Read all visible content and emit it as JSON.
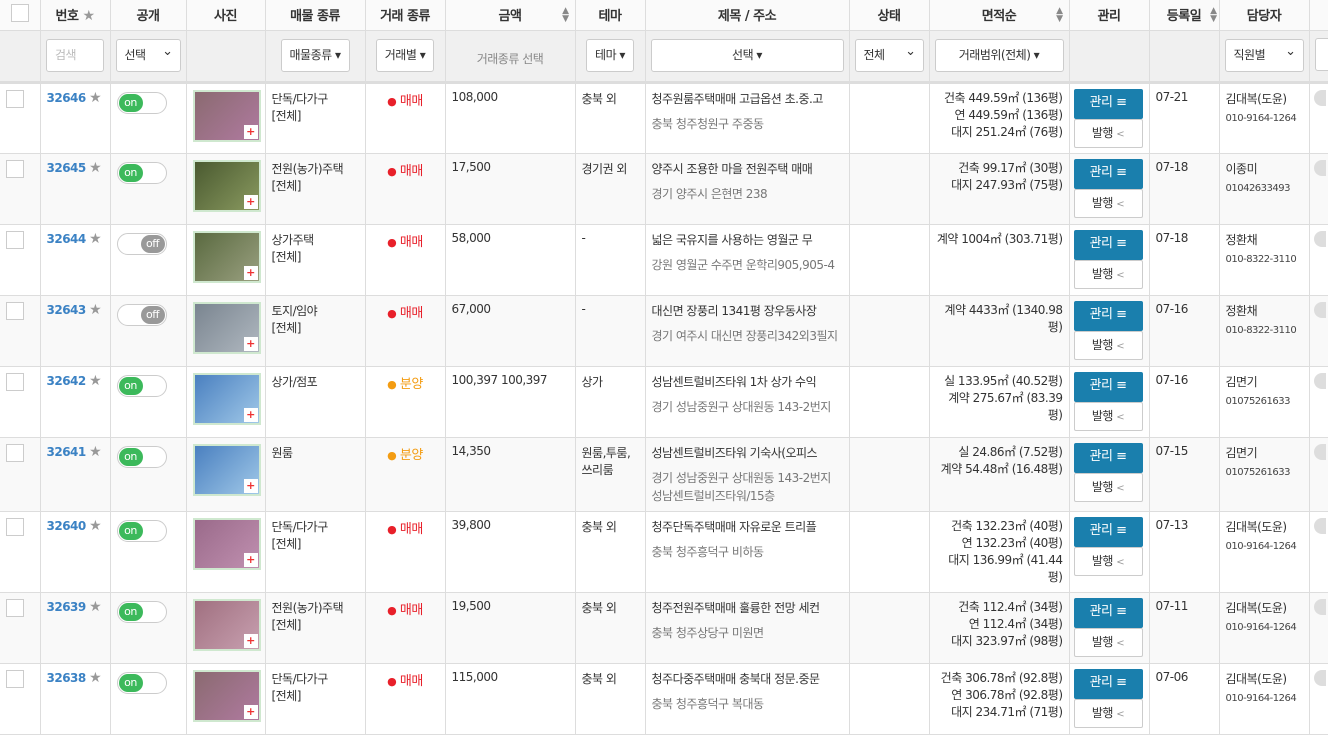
{
  "headers": {
    "no": "번호",
    "public": "공개",
    "photo": "사진",
    "type": "매물 종류",
    "deal": "거래 종류",
    "price": "금액",
    "theme": "테마",
    "title": "제목 / 주소",
    "status": "상태",
    "area": "면적순",
    "manage": "관리",
    "date": "등록일",
    "agent": "담당자"
  },
  "filters": {
    "search_placeholder": "검색",
    "public": "선택",
    "type": "매물종류 ▾",
    "deal": "거래별 ▾",
    "price_note": "거래종류 선택",
    "theme": "테마 ▾",
    "title": "선택 ▾",
    "status": "전체",
    "area": "거래범위(전체) ▾",
    "agent": "직원별"
  },
  "labels": {
    "manage": "관리 ≡",
    "publish": "발행",
    "plus": "+"
  },
  "colors": {
    "accent": "#1a7fad",
    "on": "#3cb95b",
    "sale": "#e8202a",
    "presale": "#f39c12",
    "link": "#3b82c4"
  },
  "rows": [
    {
      "no": "32646",
      "toggle": "on",
      "type": "단독/다가구",
      "sub": "[전체]",
      "deal": "매매",
      "deal_color": "#e8202a",
      "price": "108,000",
      "theme": "충북 외",
      "title": "청주원룸주택매매 고급옵션 초.중.고",
      "addr": "충북 청주청원구 주중동",
      "area": [
        "건축 449.59㎡ (136평)",
        "연 449.59㎡ (136평)",
        "대지 251.24㎡ (76평)"
      ],
      "date": "07-21",
      "agent": "김대복(도윤)",
      "phone": "010-9164-1264"
    },
    {
      "no": "32645",
      "toggle": "on",
      "type": "전원(농가)주택",
      "sub": "[전체]",
      "deal": "매매",
      "deal_color": "#e8202a",
      "price": "17,500",
      "theme": "경기권 외",
      "title": "양주시 조용한 마을 전원주택 매매",
      "addr": "경기 양주시 은현면 238",
      "area": [
        "건축 99.17㎡ (30평)",
        "대지 247.93㎡ (75평)"
      ],
      "date": "07-18",
      "agent": "이종미",
      "phone": "01042633493"
    },
    {
      "no": "32644",
      "toggle": "off",
      "type": "상가주택",
      "sub": "[전체]",
      "deal": "매매",
      "deal_color": "#e8202a",
      "price": "58,000",
      "theme": "-",
      "title": "넓은 국유지를 사용하는 영월군 무",
      "addr": "강원 영월군 수주면 운학리905,905-4",
      "area": [
        "계약 1004㎡ (303.71평)"
      ],
      "date": "07-18",
      "agent": "정환채",
      "phone": "010-8322-3110"
    },
    {
      "no": "32643",
      "toggle": "off",
      "type": "토지/임야",
      "sub": "[전체]",
      "deal": "매매",
      "deal_color": "#e8202a",
      "price": "67,000",
      "theme": "-",
      "title": "대신면 장풍리 1341평 장우동사장",
      "addr": "경기 여주시 대신면 장풍리342외3필지",
      "area": [
        "계약 4433㎡ (1340.98평)"
      ],
      "date": "07-16",
      "agent": "정환채",
      "phone": "010-8322-3110"
    },
    {
      "no": "32642",
      "toggle": "on",
      "type": "상가/점포",
      "sub": "",
      "deal": "분양",
      "deal_color": "#f39c12",
      "price": "100,397  100,397",
      "theme": "상가",
      "title": "성남센트럴비즈타워 1차 상가 수익",
      "addr": "경기 성남중원구 상대원동 143-2번지",
      "area": [
        "실 133.95㎡ (40.52평)",
        "계약 275.67㎡ (83.39평)"
      ],
      "date": "07-16",
      "agent": "김면기",
      "phone": "01075261633"
    },
    {
      "no": "32641",
      "toggle": "on",
      "type": "원룸",
      "sub": "",
      "deal": "분양",
      "deal_color": "#f39c12",
      "price": "14,350",
      "theme": "원룸,투룸,쓰리룸",
      "title": "성남센트럴비즈타워 기숙사(오피스",
      "addr": "경기 성남중원구 상대원동 143-2번지 성남센트럴비즈타워/15층",
      "area": [
        "실 24.86㎡ (7.52평)",
        "계약 54.48㎡ (16.48평)"
      ],
      "date": "07-15",
      "agent": "김면기",
      "phone": "01075261633"
    },
    {
      "no": "32640",
      "toggle": "on",
      "type": "단독/다가구",
      "sub": "[전체]",
      "deal": "매매",
      "deal_color": "#e8202a",
      "price": "39,800",
      "theme": "충북 외",
      "title": "청주단독주택매매 자유로운 트리플",
      "addr": "충북 청주흥덕구 비하동",
      "area": [
        "건축 132.23㎡ (40평)",
        "연 132.23㎡ (40평)",
        "대지 136.99㎡ (41.44평)"
      ],
      "date": "07-13",
      "agent": "김대복(도윤)",
      "phone": "010-9164-1264"
    },
    {
      "no": "32639",
      "toggle": "on",
      "type": "전원(농가)주택",
      "sub": "[전체]",
      "deal": "매매",
      "deal_color": "#e8202a",
      "price": "19,500",
      "theme": "충북 외",
      "title": "청주전원주택매매 훌륭한 전망 세컨",
      "addr": "충북 청주상당구 미원면",
      "area": [
        "건축 112.4㎡ (34평)",
        "연 112.4㎡ (34평)",
        "대지 323.97㎡ (98평)"
      ],
      "date": "07-11",
      "agent": "김대복(도윤)",
      "phone": "010-9164-1264"
    },
    {
      "no": "32638",
      "toggle": "on",
      "type": "단독/다가구",
      "sub": "[전체]",
      "deal": "매매",
      "deal_color": "#e8202a",
      "price": "115,000",
      "theme": "충북 외",
      "title": "청주다중주택매매 충북대 정문.중문",
      "addr": "충북 청주흥덕구 복대동",
      "area": [
        "건축 306.78㎡ (92.8평)",
        "연 306.78㎡ (92.8평)",
        "대지 234.71㎡ (71평)"
      ],
      "date": "07-06",
      "agent": "김대복(도윤)",
      "phone": "010-9164-1264"
    }
  ]
}
